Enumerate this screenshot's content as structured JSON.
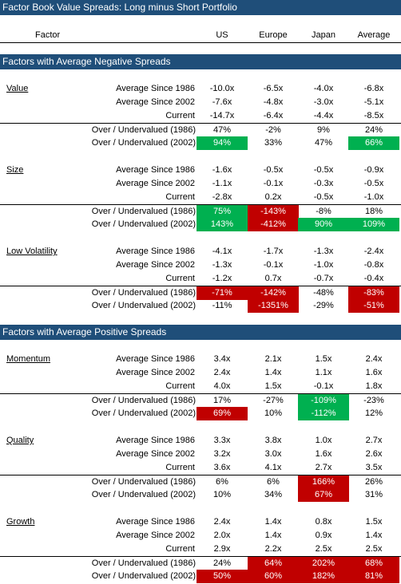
{
  "title": "Factor Book Value Spreads: Long minus Short Portfolio",
  "columns": {
    "factor": "Factor",
    "regions": [
      "US",
      "Europe",
      "Japan",
      "Average"
    ]
  },
  "section_negative": "Factors with Average Negative Spreads",
  "section_positive": "Factors with Average Positive Spreads",
  "row_labels": {
    "avg1986": "Average Since 1986",
    "avg2002": "Average Since 2002",
    "current": "Current",
    "over1986": "Over / Undervalued (1986)",
    "over2002": "Over / Undervalued (2002)"
  },
  "colors": {
    "title_bar": "#1f4e79",
    "green": "#00b050",
    "red": "#c00000"
  },
  "factors": [
    {
      "name": "Value",
      "avg1986": [
        "-10.0x",
        "-6.5x",
        "-4.0x",
        "-6.8x"
      ],
      "avg2002": [
        "-7.6x",
        "-4.8x",
        "-3.0x",
        "-5.1x"
      ],
      "current": [
        "-14.7x",
        "-6.4x",
        "-4.4x",
        "-8.5x"
      ],
      "over1986": [
        "47%",
        "-2%",
        "9%",
        "24%"
      ],
      "over2002": [
        "94%",
        "33%",
        "47%",
        "66%"
      ]
    },
    {
      "name": "Size",
      "avg1986": [
        "-1.6x",
        "-0.5x",
        "-0.5x",
        "-0.9x"
      ],
      "avg2002": [
        "-1.1x",
        "-0.1x",
        "-0.3x",
        "-0.5x"
      ],
      "current": [
        "-2.8x",
        "0.2x",
        "-0.5x",
        "-1.0x"
      ],
      "over1986": [
        "75%",
        "-143%",
        "-8%",
        "18%"
      ],
      "over2002": [
        "143%",
        "-412%",
        "90%",
        "109%"
      ]
    },
    {
      "name": "Low Volatility",
      "avg1986": [
        "-4.1x",
        "-1.7x",
        "-1.3x",
        "-2.4x"
      ],
      "avg2002": [
        "-1.3x",
        "-0.1x",
        "-1.0x",
        "-0.8x"
      ],
      "current": [
        "-1.2x",
        "0.7x",
        "-0.7x",
        "-0.4x"
      ],
      "over1986": [
        "-71%",
        "-142%",
        "-48%",
        "-83%"
      ],
      "over2002": [
        "-11%",
        "-1351%",
        "-29%",
        "-51%"
      ]
    },
    {
      "name": "Momentum",
      "avg1986": [
        "3.4x",
        "2.1x",
        "1.5x",
        "2.4x"
      ],
      "avg2002": [
        "2.4x",
        "1.4x",
        "1.1x",
        "1.6x"
      ],
      "current": [
        "4.0x",
        "1.5x",
        "-0.1x",
        "1.8x"
      ],
      "over1986": [
        "17%",
        "-27%",
        "-109%",
        "-23%"
      ],
      "over2002": [
        "69%",
        "10%",
        "-112%",
        "12%"
      ]
    },
    {
      "name": "Quality",
      "avg1986": [
        "3.3x",
        "3.8x",
        "1.0x",
        "2.7x"
      ],
      "avg2002": [
        "3.2x",
        "3.0x",
        "1.6x",
        "2.6x"
      ],
      "current": [
        "3.6x",
        "4.1x",
        "2.7x",
        "3.5x"
      ],
      "over1986": [
        "6%",
        "6%",
        "166%",
        "26%"
      ],
      "over2002": [
        "10%",
        "34%",
        "67%",
        "31%"
      ]
    },
    {
      "name": "Growth",
      "avg1986": [
        "2.4x",
        "1.4x",
        "0.8x",
        "1.5x"
      ],
      "avg2002": [
        "2.0x",
        "1.4x",
        "0.9x",
        "1.4x"
      ],
      "current": [
        "2.9x",
        "2.2x",
        "2.5x",
        "2.5x"
      ],
      "over1986": [
        "24%",
        "64%",
        "202%",
        "68%"
      ],
      "over2002": [
        "50%",
        "60%",
        "182%",
        "81%"
      ]
    }
  ]
}
